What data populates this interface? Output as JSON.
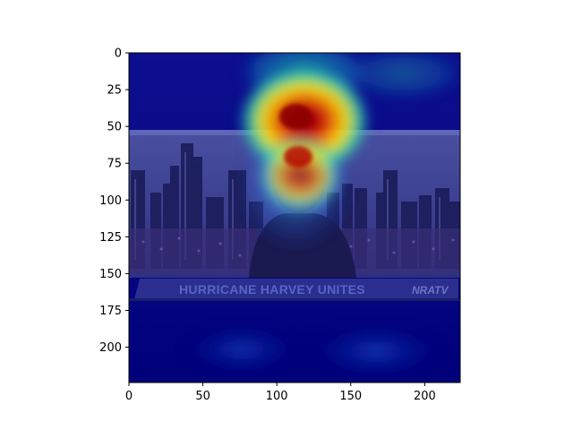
{
  "axes": {
    "xlim": [
      0,
      224
    ],
    "ylim": [
      224,
      0
    ],
    "xticks": [
      0,
      50,
      100,
      150,
      200
    ],
    "yticks": [
      0,
      25,
      50,
      75,
      100,
      125,
      150,
      175,
      200
    ]
  },
  "image": {
    "ticker_text": "HURRICANE HARVEY UNITES",
    "logo_text": "NRATV"
  },
  "heatmap": {
    "colormap": "jet",
    "peak_color": "#8b0000",
    "low_color": "#00007f"
  }
}
